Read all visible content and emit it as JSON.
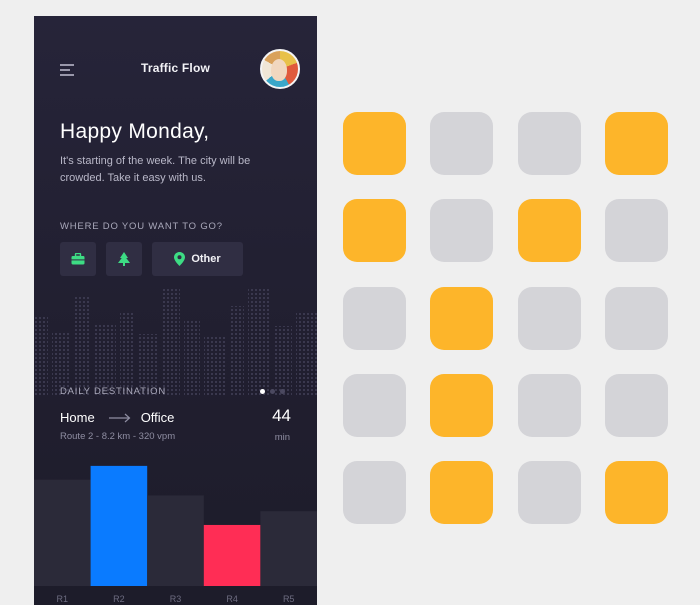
{
  "app": {
    "title": "Traffic Flow",
    "menu_icon": "menu-icon",
    "avatar_icon": "avatar"
  },
  "greeting": {
    "title": "Happy Monday,",
    "subtitle": "It's starting of the week. The city will be crowded. Take it easy with us."
  },
  "destinations": {
    "question": "WHERE DO YOU WANT TO GO?",
    "accent": "#3ddc84",
    "buttons": [
      {
        "icon": "briefcase-icon"
      },
      {
        "icon": "tree-icon"
      },
      {
        "icon": "location-pin-icon",
        "label": "Other"
      }
    ]
  },
  "daily": {
    "label": "DAILY DESTINATION",
    "from": "Home",
    "to": "Office",
    "route": "Route 2 - 8.2 km - 320 vpm",
    "minutes": "44",
    "unit": "min",
    "page_count": 3,
    "active_page": 0
  },
  "chart_data": {
    "type": "bar",
    "categories": [
      "R1",
      "R2",
      "R3",
      "R4",
      "R5"
    ],
    "values": [
      108,
      122,
      92,
      62,
      76
    ],
    "highlight": {
      "R2": "#0a7bff",
      "R4": "#ff2d55"
    },
    "base_color": "#2b2a39",
    "ylim": [
      0,
      130
    ]
  },
  "tile_grid": {
    "on_color": "#fdb52a",
    "off_color": "#d4d4d8",
    "rows": [
      [
        1,
        0,
        0,
        1
      ],
      [
        1,
        0,
        1,
        0
      ],
      [
        0,
        1,
        0,
        0
      ],
      [
        0,
        1,
        0,
        0
      ],
      [
        0,
        1,
        0,
        1
      ]
    ]
  }
}
